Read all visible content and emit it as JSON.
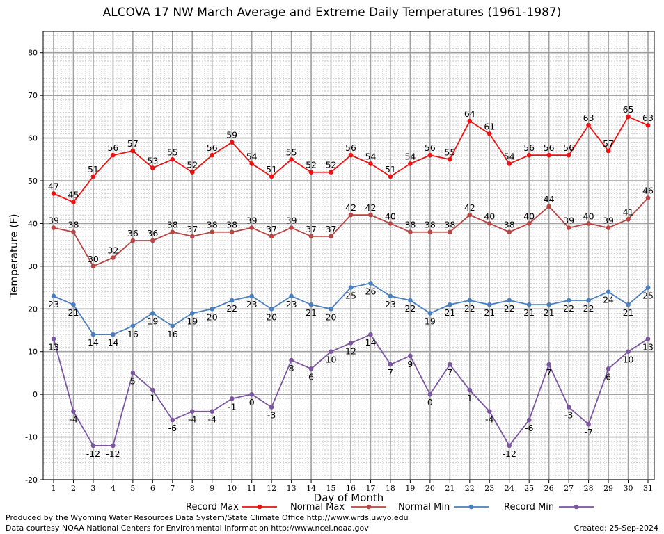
{
  "chart_data": {
    "type": "line",
    "title": "ALCOVA 17 NW March Average and Extreme Daily Temperatures (1961-1987)",
    "xlabel": "Day of Month",
    "ylabel": "Temperature (F)",
    "ylim": [
      -20,
      85
    ],
    "yticks": [
      -20,
      -10,
      0,
      10,
      20,
      30,
      40,
      50,
      60,
      70,
      80
    ],
    "x": [
      1,
      2,
      3,
      4,
      5,
      6,
      7,
      8,
      9,
      10,
      11,
      12,
      13,
      14,
      15,
      16,
      17,
      18,
      19,
      20,
      21,
      22,
      23,
      24,
      25,
      26,
      27,
      28,
      29,
      30,
      31
    ],
    "grid": true,
    "legend": "bottom",
    "series": [
      {
        "name": "Record Max",
        "color": "#ee1111",
        "values": [
          47,
          45,
          51,
          56,
          57,
          53,
          55,
          52,
          56,
          59,
          54,
          51,
          55,
          52,
          52,
          56,
          54,
          51,
          54,
          56,
          55,
          64,
          61,
          54,
          56,
          56,
          56,
          63,
          57,
          65,
          63
        ]
      },
      {
        "name": "Normal Max",
        "color": "#b84444",
        "values": [
          39,
          38,
          30,
          32,
          36,
          36,
          38,
          37,
          38,
          38,
          39,
          37,
          39,
          37,
          37,
          42,
          42,
          40,
          38,
          38,
          38,
          42,
          40,
          38,
          40,
          44,
          39,
          40,
          39,
          41,
          46
        ]
      },
      {
        "name": "Normal Min",
        "color": "#4a7fbf",
        "values": [
          23,
          21,
          14,
          14,
          16,
          19,
          16,
          19,
          20,
          22,
          23,
          20,
          23,
          21,
          20,
          25,
          26,
          23,
          22,
          19,
          21,
          22,
          21,
          22,
          21,
          21,
          22,
          22,
          24,
          21,
          25
        ]
      },
      {
        "name": "Record Min",
        "color": "#7a55a0",
        "values": [
          13,
          -4,
          -12,
          -12,
          5,
          1,
          -6,
          -4,
          -4,
          -1,
          0,
          -3,
          8,
          6,
          10,
          12,
          14,
          7,
          9,
          0,
          7,
          1,
          -4,
          -12,
          -6,
          7,
          -3,
          -7,
          6,
          10,
          13
        ]
      }
    ]
  },
  "footer": {
    "produced_by": "Produced by the Wyoming Water Resources Data System/State Climate Office http://www.wrds.uwyo.edu",
    "courtesy": "Data courtesy NOAA National Centers for Environmental Information http://www.ncei.noaa.gov",
    "created": "Created: 25-Sep-2024"
  }
}
